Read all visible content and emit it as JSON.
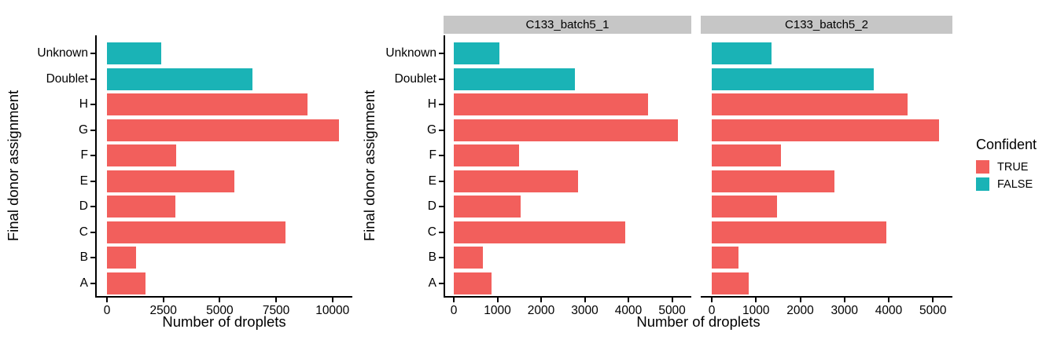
{
  "colors": {
    "confident_true": "#F25F5C",
    "confident_false": "#1AB3B6",
    "strip_bg": "#C6C6C6",
    "axis_line": "#000000",
    "text": "#000000",
    "background": "#FFFFFF"
  },
  "axes": {
    "x_title": "Number of droplets",
    "y_title": "Final donor assignment"
  },
  "legend": {
    "title": "Confident",
    "position": "right",
    "items": [
      {
        "label": "TRUE",
        "color_key": "confident_true"
      },
      {
        "label": "FALSE",
        "color_key": "confident_false"
      }
    ]
  },
  "chart_data": [
    {
      "type": "bar",
      "orientation": "horizontal",
      "panel": "combined",
      "categories": [
        "Unknown",
        "Doublet",
        "H",
        "G",
        "F",
        "E",
        "D",
        "C",
        "B",
        "A"
      ],
      "values": [
        2400,
        6450,
        8890,
        10280,
        3070,
        5640,
        3020,
        7900,
        1300,
        1710
      ],
      "confident": [
        "FALSE",
        "FALSE",
        "TRUE",
        "TRUE",
        "TRUE",
        "TRUE",
        "TRUE",
        "TRUE",
        "TRUE",
        "TRUE"
      ],
      "xlabel": "Number of droplets",
      "ylabel": "Final donor assignment",
      "x_ticks": [
        0,
        2500,
        5000,
        7500,
        10000
      ],
      "xlim": [
        0,
        10880
      ],
      "grid": false
    },
    {
      "type": "bar",
      "orientation": "horizontal",
      "panel": "facet-1",
      "facet_label": "C133_batch5_1",
      "categories": [
        "Unknown",
        "Doublet",
        "H",
        "G",
        "F",
        "E",
        "D",
        "C",
        "B",
        "A"
      ],
      "values": [
        1040,
        2780,
        4450,
        5130,
        1500,
        2840,
        1530,
        3930,
        670,
        870
      ],
      "confident": [
        "FALSE",
        "FALSE",
        "TRUE",
        "TRUE",
        "TRUE",
        "TRUE",
        "TRUE",
        "TRUE",
        "TRUE",
        "TRUE"
      ],
      "xlabel": "Number of droplets",
      "ylabel": "Final donor assignment",
      "x_ticks": [
        0,
        1000,
        2000,
        3000,
        4000,
        5000
      ],
      "xlim": [
        0,
        5440
      ],
      "grid": false
    },
    {
      "type": "bar",
      "orientation": "horizontal",
      "panel": "facet-2",
      "facet_label": "C133_batch5_2",
      "categories": [
        "Unknown",
        "Doublet",
        "H",
        "G",
        "F",
        "E",
        "D",
        "C",
        "B",
        "A"
      ],
      "values": [
        1350,
        3660,
        4420,
        5140,
        1560,
        2780,
        1480,
        3950,
        610,
        830
      ],
      "confident": [
        "FALSE",
        "FALSE",
        "TRUE",
        "TRUE",
        "TRUE",
        "TRUE",
        "TRUE",
        "TRUE",
        "TRUE",
        "TRUE"
      ],
      "xlabel": "Number of droplets",
      "ylabel": "Final donor assignment",
      "x_ticks": [
        0,
        1000,
        2000,
        3000,
        4000,
        5000
      ],
      "xlim": [
        0,
        5440
      ],
      "grid": false
    }
  ]
}
